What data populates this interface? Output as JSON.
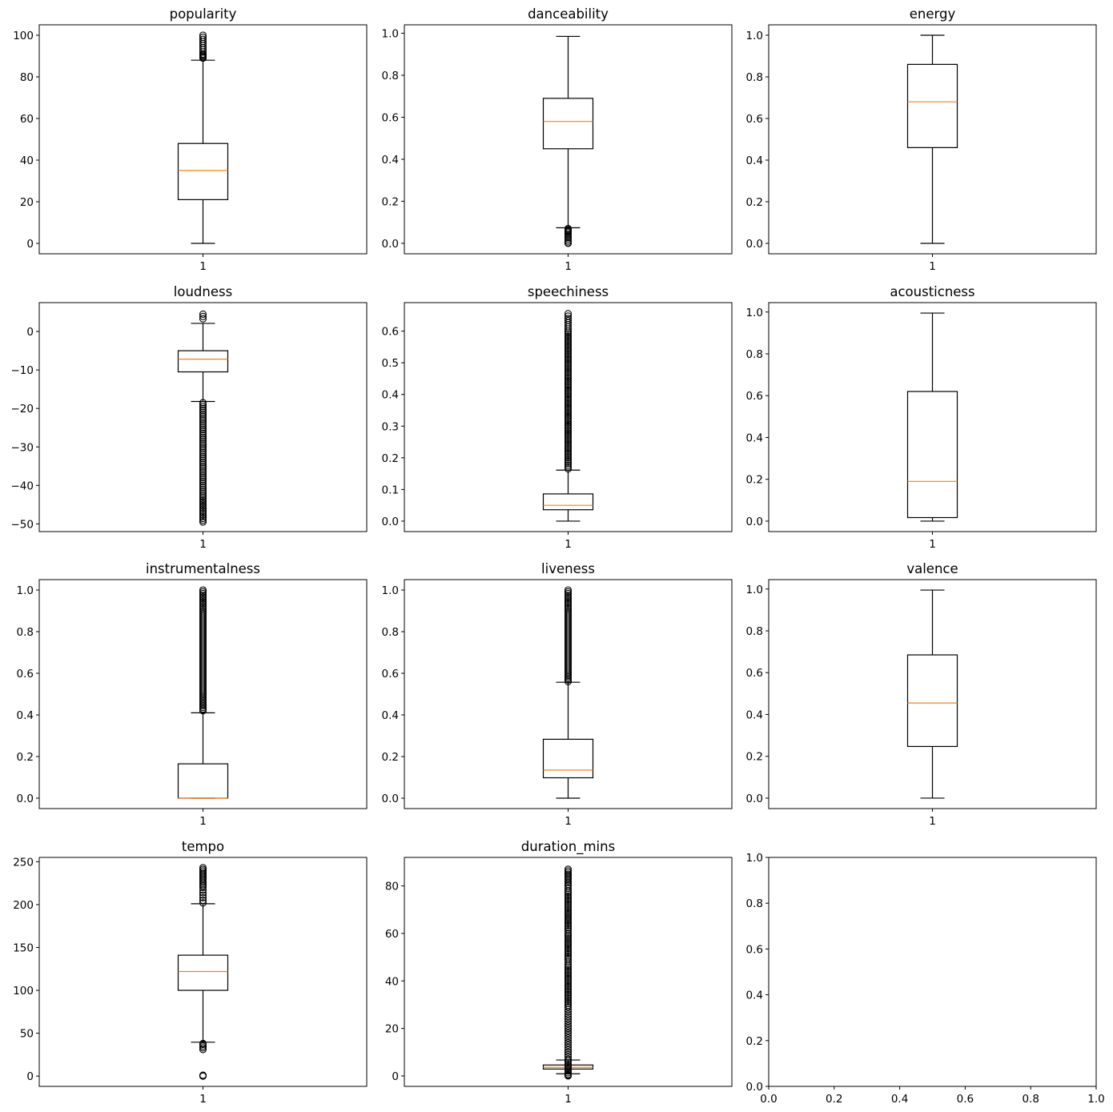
{
  "colors": {
    "box": "#000000",
    "median": "#ff7f0e",
    "background": "#ffffff"
  },
  "chart_data": [
    {
      "type": "box",
      "title": "popularity",
      "xticks": [
        "1"
      ],
      "ylim": [
        -5,
        105
      ],
      "yticks": [
        0,
        20,
        40,
        60,
        80,
        100
      ],
      "tick_decimals": 0,
      "stats": {
        "whislo": 0,
        "q1": 21,
        "med": 35,
        "q3": 48,
        "whishi": 88
      },
      "fliers": [
        89,
        89.5,
        90,
        90.5,
        91,
        92,
        93,
        94,
        95,
        96,
        97,
        98,
        99,
        100
      ]
    },
    {
      "type": "box",
      "title": "danceability",
      "xticks": [
        "1"
      ],
      "ylim": [
        -0.05,
        1.04
      ],
      "yticks": [
        0.0,
        0.2,
        0.4,
        0.6,
        0.8,
        1.0
      ],
      "tick_decimals": 1,
      "stats": {
        "whislo": 0.074,
        "q1": 0.45,
        "med": 0.58,
        "q3": 0.69,
        "whishi": 0.985
      },
      "fliers": [
        0.0,
        0.001,
        0.002,
        0.05,
        0.055,
        0.06,
        0.065,
        0.07
      ]
    },
    {
      "type": "box",
      "title": "energy",
      "xticks": [
        "1"
      ],
      "ylim": [
        -0.05,
        1.05
      ],
      "yticks": [
        0.0,
        0.2,
        0.4,
        0.6,
        0.8,
        1.0
      ],
      "tick_decimals": 1,
      "stats": {
        "whislo": 0.0,
        "q1": 0.46,
        "med": 0.68,
        "q3": 0.86,
        "whishi": 1.0
      },
      "fliers": []
    },
    {
      "type": "box",
      "title": "loudness",
      "xticks": [
        "1"
      ],
      "ylim": [
        -52,
        7.5
      ],
      "yticks": [
        0,
        -10,
        -20,
        -30,
        -40,
        -50
      ],
      "tick_decimals": 0,
      "stats": {
        "whislo": -18.2,
        "q1": -10.5,
        "med": -7.2,
        "q3": -5.0,
        "whishi": 2.1
      },
      "fliers": [
        4.5,
        3.3,
        -18.5,
        -20,
        -22,
        -24,
        -26,
        -28,
        -30,
        -32,
        -34,
        -36,
        -38,
        -40,
        -42,
        -43.5,
        -46.2,
        -46.7,
        -49.5
      ]
    },
    {
      "type": "box",
      "title": "speechiness",
      "xticks": [
        "1"
      ],
      "ylim": [
        -0.033,
        0.69
      ],
      "yticks": [
        0.0,
        0.1,
        0.2,
        0.3,
        0.4,
        0.5,
        0.6
      ],
      "tick_decimals": 1,
      "stats": {
        "whislo": 0.0,
        "q1": 0.036,
        "med": 0.05,
        "q3": 0.086,
        "whishi": 0.161
      },
      "fliers": [
        0.165,
        0.2,
        0.25,
        0.3,
        0.35,
        0.4,
        0.45,
        0.5,
        0.55,
        0.6,
        0.62,
        0.64,
        0.655
      ]
    },
    {
      "type": "box",
      "title": "acousticness",
      "xticks": [
        "1"
      ],
      "ylim": [
        -0.05,
        1.045
      ],
      "yticks": [
        0.0,
        0.2,
        0.4,
        0.6,
        0.8,
        1.0
      ],
      "tick_decimals": 1,
      "stats": {
        "whislo": 0.0,
        "q1": 0.017,
        "med": 0.19,
        "q3": 0.62,
        "whishi": 0.995
      },
      "fliers": []
    },
    {
      "type": "box",
      "title": "instrumentalness",
      "xticks": [
        "1"
      ],
      "ylim": [
        -0.05,
        1.05
      ],
      "yticks": [
        0.0,
        0.2,
        0.4,
        0.6,
        0.8,
        1.0
      ],
      "tick_decimals": 1,
      "stats": {
        "whislo": 0.0,
        "q1": 0.0,
        "med": 0.0,
        "q3": 0.165,
        "whishi": 0.41
      },
      "fliers": [
        0.42,
        0.5,
        0.6,
        0.7,
        0.8,
        0.9,
        0.95,
        1.0
      ]
    },
    {
      "type": "box",
      "title": "liveness",
      "xticks": [
        "1"
      ],
      "ylim": [
        -0.05,
        1.05
      ],
      "yticks": [
        0.0,
        0.2,
        0.4,
        0.6,
        0.8,
        1.0
      ],
      "tick_decimals": 1,
      "stats": {
        "whislo": 0.0,
        "q1": 0.098,
        "med": 0.135,
        "q3": 0.283,
        "whishi": 0.557
      },
      "fliers": [
        0.56,
        0.6,
        0.7,
        0.8,
        0.9,
        0.95,
        1.0
      ]
    },
    {
      "type": "box",
      "title": "valence",
      "xticks": [
        "1"
      ],
      "ylim": [
        -0.05,
        1.045
      ],
      "yticks": [
        0.0,
        0.2,
        0.4,
        0.6,
        0.8,
        1.0
      ],
      "tick_decimals": 1,
      "stats": {
        "whislo": 0.0,
        "q1": 0.247,
        "med": 0.455,
        "q3": 0.685,
        "whishi": 0.995
      },
      "fliers": []
    },
    {
      "type": "box",
      "title": "tempo",
      "xticks": [
        "1"
      ],
      "ylim": [
        -12,
        255
      ],
      "yticks": [
        0,
        50,
        100,
        150,
        200,
        250
      ],
      "tick_decimals": 0,
      "stats": {
        "whislo": 39.5,
        "q1": 100,
        "med": 122,
        "q3": 141,
        "whishi": 201
      },
      "fliers": [
        0,
        0.5,
        1,
        31,
        33,
        35,
        37,
        38,
        202,
        205,
        208,
        211,
        214,
        217,
        220,
        222,
        243
      ]
    },
    {
      "type": "box",
      "title": "duration_mins",
      "xticks": [
        "1"
      ],
      "ylim": [
        -4.4,
        92
      ],
      "yticks": [
        0,
        20,
        40,
        60,
        80
      ],
      "tick_decimals": 0,
      "stats": {
        "whislo": 0.9,
        "q1": 2.9,
        "med": 3.6,
        "q3": 4.6,
        "whishi": 6.7
      },
      "fliers": [
        0.0,
        0.3,
        0.6,
        7,
        9,
        11,
        13,
        15,
        17,
        19,
        21,
        23,
        25,
        27,
        29,
        30.5,
        32,
        38,
        41,
        44,
        47,
        49,
        55,
        60,
        61,
        64,
        69,
        72,
        75,
        78,
        80,
        87
      ]
    },
    {
      "type": "empty",
      "title": "",
      "xlim": [
        0,
        1
      ],
      "ylim": [
        0,
        1
      ],
      "xticks": [
        0.0,
        0.2,
        0.4,
        0.6,
        0.8,
        1.0
      ],
      "yticks": [
        0.0,
        0.2,
        0.4,
        0.6,
        0.8,
        1.0
      ],
      "tick_decimals": 1
    }
  ]
}
